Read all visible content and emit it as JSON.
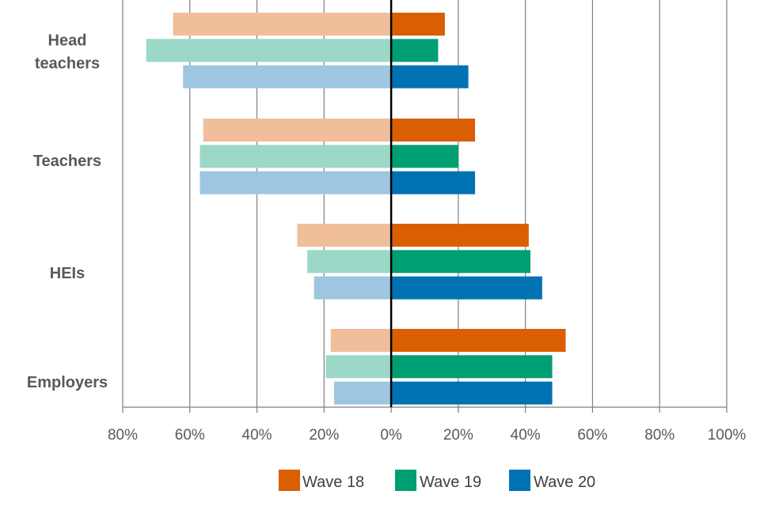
{
  "chart_data": {
    "type": "bar",
    "orientation": "horizontal-diverging",
    "title": "",
    "xlabel": "",
    "ylabel": "",
    "categories": [
      [
        "Head",
        "teachers"
      ],
      [
        "Teachers"
      ],
      [
        "HEIs"
      ],
      [
        "Employers"
      ]
    ],
    "xlim": [
      -80,
      100
    ],
    "ticks": [
      -80,
      -60,
      -40,
      -20,
      0,
      20,
      40,
      60,
      80,
      100
    ],
    "tick_labels": [
      "80%",
      "60%",
      "40%",
      "20%",
      "0%",
      "20%",
      "40%",
      "60%",
      "80%",
      "100%"
    ],
    "series": [
      {
        "name": "Wave 18",
        "color": "#D95F02",
        "negative_color": "#F0BE9A",
        "positive": [
          16,
          25,
          41,
          52
        ],
        "negative": [
          -65,
          -56,
          -28,
          -18
        ]
      },
      {
        "name": "Wave 19",
        "color": "#009E73",
        "negative_color": "#9BD8C7",
        "positive": [
          14,
          20,
          41.5,
          48
        ],
        "negative": [
          -73,
          -57,
          -25,
          -19.5
        ]
      },
      {
        "name": "Wave 20",
        "color": "#0072B2",
        "negative_color": "#9DC6E0",
        "positive": [
          23,
          25,
          45,
          48
        ],
        "negative": [
          -62,
          -57,
          -23,
          -17
        ]
      }
    ],
    "legend": {
      "placement": "bottom-center"
    },
    "grid": true
  }
}
